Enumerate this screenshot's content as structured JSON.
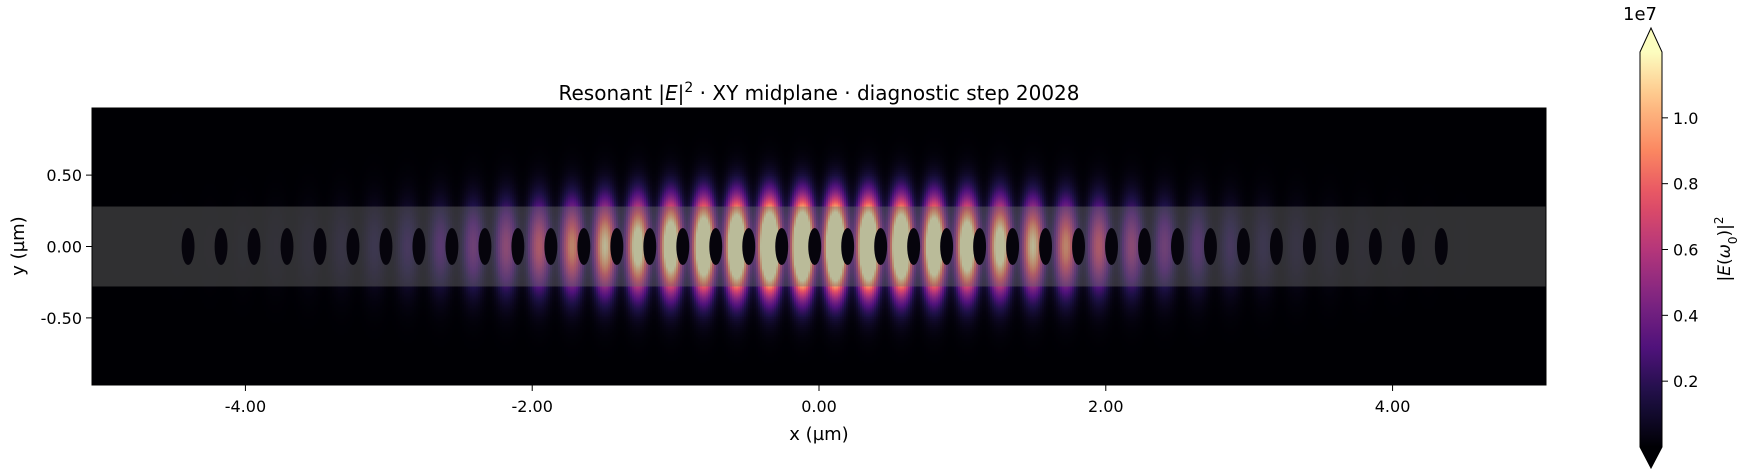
{
  "chart_data": {
    "type": "heatmap",
    "title": "Resonant |E|² · XY midplane · diagnostic step 20028",
    "title_parts": {
      "pre": "Resonant |",
      "italic": "E",
      "post": "|",
      "sup": "2",
      "rest": " · XY midplane · diagnostic step 20028"
    },
    "xlabel": "x (µm)",
    "ylabel": "y (µm)",
    "xlim": [
      -5.07,
      5.07
    ],
    "ylim": [
      -0.97,
      0.97
    ],
    "xticks": [
      -4,
      -2,
      0,
      2,
      4
    ],
    "xtick_labels": [
      "-4.00",
      "-2.00",
      "0.00",
      "2.00",
      "4.00"
    ],
    "yticks": [
      -0.5,
      0,
      0.5
    ],
    "ytick_labels": [
      "-0.50",
      "0.00",
      "0.50"
    ],
    "colormap": "magma",
    "colorbar": {
      "label": "|E(ω₀)|²",
      "label_parts": {
        "pre": "|",
        "italic": "E",
        "mid": "(",
        "italic2": "ω",
        "sub": "0",
        "post": ")|",
        "sup": "2"
      },
      "offset_text": "1e7",
      "range": [
        0,
        12000000
      ],
      "ticks": [
        2000000,
        4000000,
        6000000,
        8000000,
        10000000
      ],
      "tick_labels": [
        "0.2",
        "0.4",
        "0.6",
        "0.8",
        "1.0"
      ],
      "extend": "both"
    },
    "waveguide": {
      "y_min": -0.28,
      "y_max": 0.28,
      "color": "#5f5f5f"
    },
    "holes": {
      "x": [
        -4.4,
        -4.17,
        -3.94,
        -3.71,
        -3.48,
        -3.25,
        -3.02,
        -2.79,
        -2.56,
        -2.33,
        -2.1,
        -1.87,
        -1.64,
        -1.41,
        -1.18,
        -0.95,
        -0.72,
        -0.49,
        -0.26,
        -0.03,
        0.2,
        0.43,
        0.66,
        0.89,
        1.12,
        1.35,
        1.58,
        1.81,
        2.04,
        2.27,
        2.5,
        2.73,
        2.96,
        3.19,
        3.42,
        3.65,
        3.88,
        4.11,
        4.34
      ],
      "semi_axis_x": 0.045,
      "semi_axis_y": 0.13
    },
    "field": {
      "peak": 12000000,
      "envelope_sigma_x": 1.3,
      "mode_sigma_y": 0.3,
      "period": 0.23
    }
  },
  "colors": {
    "background": "#000004",
    "accent": "#fcfdbf"
  }
}
